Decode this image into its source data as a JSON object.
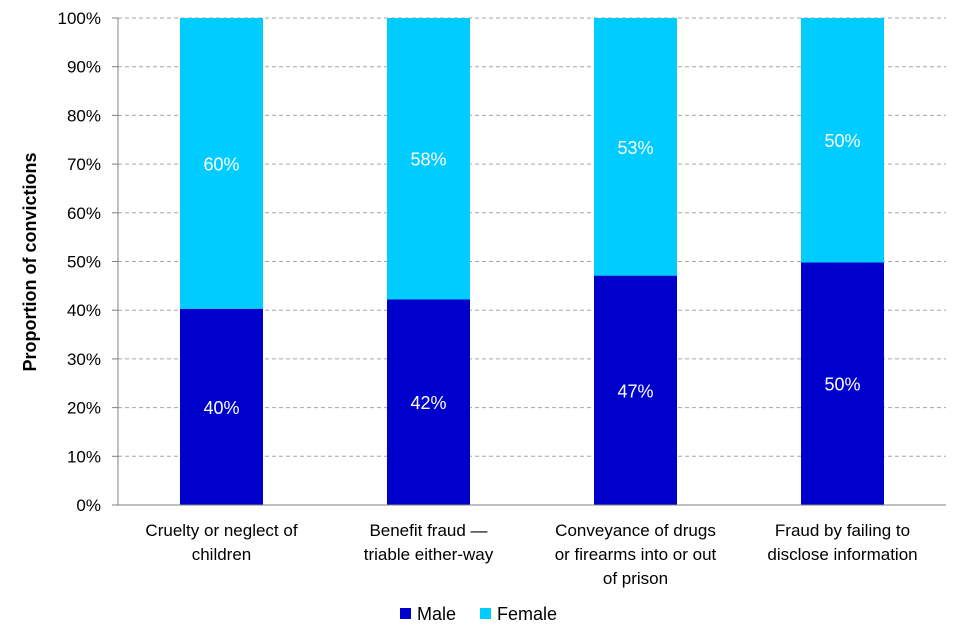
{
  "chart_data": {
    "type": "bar",
    "stacked": true,
    "title": "",
    "ylabel": "Proportion of convictions",
    "xlabel": "",
    "ylim": [
      0,
      100
    ],
    "y_ticks": [
      "0%",
      "10%",
      "20%",
      "30%",
      "40%",
      "50%",
      "60%",
      "70%",
      "80%",
      "90%",
      "100%"
    ],
    "grid": true,
    "legend_position": "bottom",
    "categories": [
      [
        "Cruelty or neglect of",
        "children"
      ],
      [
        "Benefit fraud —",
        "triable either-way"
      ],
      [
        "Conveyance of drugs",
        "or firearms into or out",
        "of prison"
      ],
      [
        "Fraud by failing to",
        "disclose information"
      ]
    ],
    "series": [
      {
        "name": "Male",
        "color": "#0000CC",
        "values": [
          40.3,
          42.2,
          47.1,
          49.8
        ],
        "labels": [
          "40%",
          "42%",
          "47%",
          "50%"
        ]
      },
      {
        "name": "Female",
        "color": "#00CCFF",
        "values": [
          59.7,
          57.8,
          52.9,
          50.2
        ],
        "labels": [
          "60%",
          "58%",
          "53%",
          "50%"
        ]
      }
    ]
  }
}
